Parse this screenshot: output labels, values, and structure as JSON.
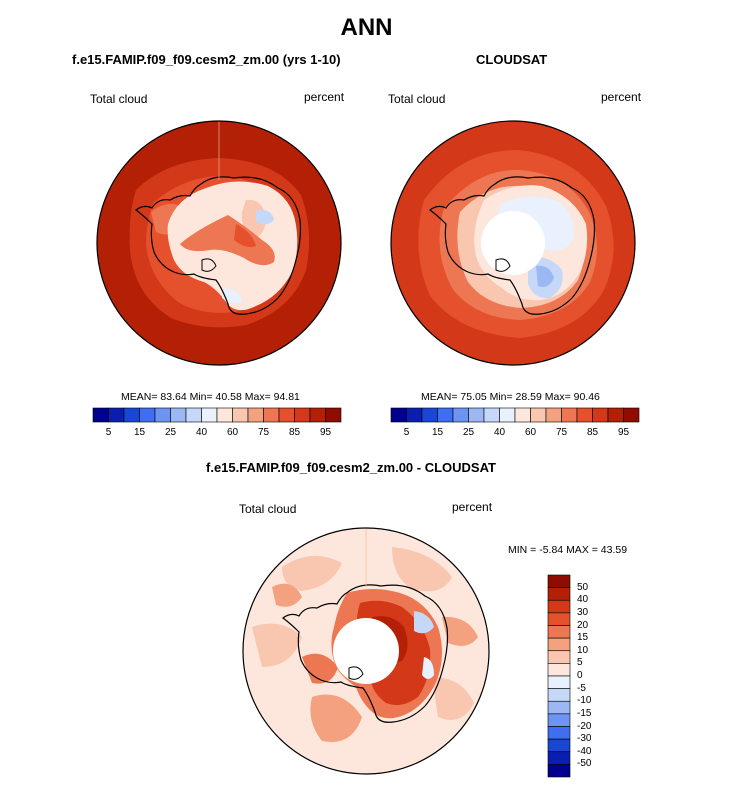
{
  "figure": {
    "title": "ANN",
    "panel_left_title": "f.e15.FAMIP.f09_f09.cesm2_zm.00 (yrs 1-10)",
    "panel_right_title": "CLOUDSAT",
    "panel_bottom_title": "f.e15.FAMIP.f09_f09.cesm2_zm.00 - CLOUDSAT"
  },
  "colors": {
    "abs_scale": [
      "#00008f",
      "#0a1fb0",
      "#1a46d6",
      "#3f6ef0",
      "#6e94f2",
      "#9bb7f4",
      "#c6d8f8",
      "#e8f1fd",
      "#fde7dc",
      "#f9c6b0",
      "#f3a17f",
      "#ed7752",
      "#e5502d",
      "#d33818",
      "#b42006",
      "#8e0c00"
    ],
    "diff_scale": [
      "#00008f",
      "#0a1fb0",
      "#1a46d6",
      "#3f6ef0",
      "#6e94f2",
      "#9bb7f4",
      "#c6d8f8",
      "#e8f1fd",
      "#fde7dc",
      "#f9c6b0",
      "#f3a17f",
      "#ed7752",
      "#e5502d",
      "#d33818",
      "#b42006",
      "#8e0c00"
    ]
  },
  "chart_data": [
    {
      "type": "heatmap",
      "projection": "south polar stereographic",
      "title": "f.e15.FAMIP.f09_f09.cesm2_zm.00 (yrs 1-10)",
      "variable": "Total cloud",
      "units": "percent",
      "stats": {
        "mean": "83.64",
        "min": "40.58",
        "max": "94.81"
      },
      "stats_text": "MEAN=  83.64  Min=  40.58  Max=  94.81",
      "colorbar_ticks": [
        "5",
        "15",
        "25",
        "40",
        "60",
        "75",
        "85",
        "95"
      ]
    },
    {
      "type": "heatmap",
      "projection": "south polar stereographic",
      "title": "CLOUDSAT",
      "variable": "Total cloud",
      "units": "percent",
      "stats": {
        "mean": "75.05",
        "min": "28.59",
        "max": "90.46"
      },
      "stats_text": "MEAN=  75.05  Min=  28.59  Max=  90.46",
      "colorbar_ticks": [
        "5",
        "15",
        "25",
        "40",
        "60",
        "75",
        "85",
        "95"
      ]
    },
    {
      "type": "heatmap",
      "projection": "south polar stereographic",
      "title": "f.e15.FAMIP.f09_f09.cesm2_zm.00 - CLOUDSAT",
      "variable": "Total cloud",
      "units": "percent",
      "stats": {
        "min": "-5.84",
        "max": "43.59"
      },
      "stats_text": "MIN =  -5.84 MAX =  43.59",
      "colorbar_ticks": [
        "50",
        "40",
        "30",
        "20",
        "15",
        "10",
        "5",
        "0",
        "-5",
        "-10",
        "-15",
        "-20",
        "-30",
        "-40",
        "-50"
      ]
    }
  ]
}
